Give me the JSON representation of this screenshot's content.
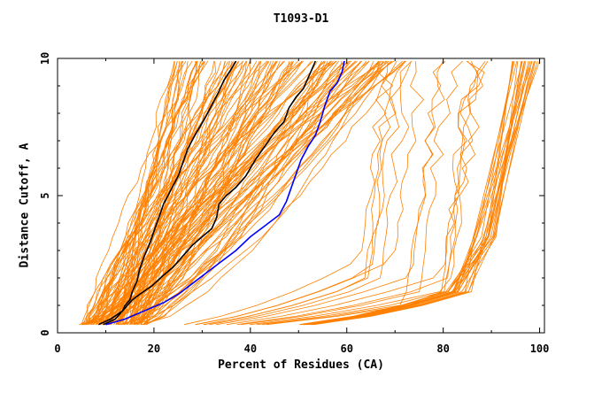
{
  "chart_data": {
    "type": "line",
    "title": "T1093-D1",
    "xlabel": "Percent of Residues (CA)",
    "ylabel": "Distance Cutoff, A",
    "xlim": [
      0,
      101
    ],
    "ylim": [
      0,
      10
    ],
    "x_ticks": [
      "0",
      "20",
      "40",
      "60",
      "80",
      "100"
    ],
    "y_ticks": [
      "0",
      "5",
      "10"
    ],
    "grid": false,
    "legend": "none",
    "colors": {
      "models": "#ff8000",
      "highlight_black": "#000000",
      "highlight_blue": "#0000ff",
      "axes": "#000000"
    },
    "series": [
      {
        "color": "#000000",
        "points": [
          [
            8.5,
            0.3
          ],
          [
            11,
            0.5
          ],
          [
            13.5,
            0.8
          ],
          [
            14,
            1.0
          ],
          [
            15,
            1.2
          ],
          [
            15.5,
            1.5
          ],
          [
            16.5,
            1.9
          ],
          [
            17,
            2.3
          ],
          [
            18,
            2.8
          ],
          [
            19,
            3.2
          ],
          [
            20,
            3.7
          ],
          [
            21,
            4.2
          ],
          [
            22,
            4.7
          ],
          [
            23.5,
            5.2
          ],
          [
            25,
            5.7
          ],
          [
            26,
            6.2
          ],
          [
            27,
            6.7
          ],
          [
            28.5,
            7.2
          ],
          [
            30.5,
            7.8
          ],
          [
            32,
            8.3
          ],
          [
            33.5,
            8.8
          ],
          [
            34.5,
            9.2
          ],
          [
            36,
            9.6
          ],
          [
            37,
            9.9
          ]
        ]
      },
      {
        "color": "#000000",
        "points": [
          [
            9.5,
            0.3
          ],
          [
            12,
            0.5
          ],
          [
            14,
            0.9
          ],
          [
            15.5,
            1.2
          ],
          [
            17,
            1.4
          ],
          [
            19.5,
            1.7
          ],
          [
            22,
            2.1
          ],
          [
            24,
            2.4
          ],
          [
            26,
            2.8
          ],
          [
            28,
            3.2
          ],
          [
            30,
            3.5
          ],
          [
            32,
            3.8
          ],
          [
            33,
            4.2
          ],
          [
            33.5,
            4.7
          ],
          [
            35,
            5.0
          ],
          [
            37,
            5.3
          ],
          [
            39,
            5.7
          ],
          [
            41,
            6.3
          ],
          [
            43,
            6.8
          ],
          [
            45,
            7.3
          ],
          [
            47,
            7.7
          ],
          [
            48,
            8.2
          ],
          [
            49.5,
            8.6
          ],
          [
            51,
            8.9
          ],
          [
            52,
            9.3
          ],
          [
            53,
            9.7
          ],
          [
            53.5,
            9.9
          ]
        ]
      },
      {
        "color": "#0000ff",
        "points": [
          [
            10,
            0.3
          ],
          [
            14,
            0.5
          ],
          [
            18,
            0.8
          ],
          [
            22,
            1.1
          ],
          [
            25,
            1.4
          ],
          [
            28,
            1.8
          ],
          [
            31,
            2.2
          ],
          [
            34,
            2.6
          ],
          [
            37,
            3.0
          ],
          [
            40,
            3.5
          ],
          [
            43,
            3.9
          ],
          [
            46,
            4.3
          ],
          [
            47.5,
            4.8
          ],
          [
            48.5,
            5.3
          ],
          [
            49.5,
            5.8
          ],
          [
            50.5,
            6.3
          ],
          [
            52,
            6.8
          ],
          [
            53.5,
            7.2
          ],
          [
            54.5,
            7.7
          ],
          [
            55.5,
            8.3
          ],
          [
            56.5,
            8.8
          ],
          [
            58,
            9.1
          ],
          [
            59,
            9.5
          ],
          [
            59.5,
            9.9
          ]
        ]
      }
    ]
  }
}
